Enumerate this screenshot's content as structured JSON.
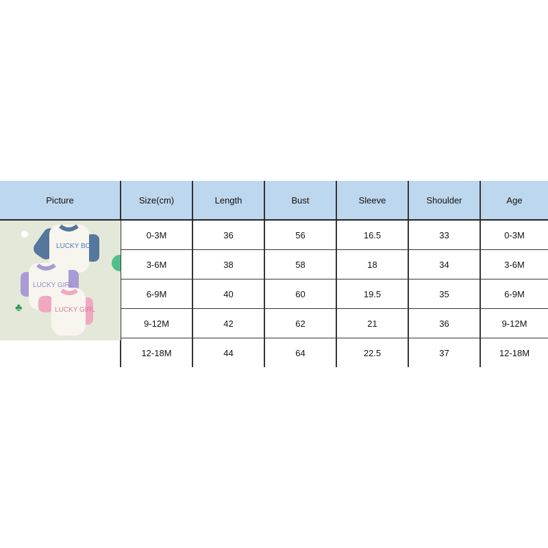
{
  "table": {
    "headers": [
      "Picture",
      "Size(cm)",
      "Length",
      "Bust",
      "Sleeve",
      "Shoulder",
      "Age"
    ],
    "rows": [
      [
        "0-3M",
        "36",
        "56",
        "16.5",
        "33",
        "0-3M"
      ],
      [
        "3-6M",
        "38",
        "58",
        "18",
        "34",
        "3-6M"
      ],
      [
        "6-9M",
        "40",
        "60",
        "19.5",
        "35",
        "6-9M"
      ],
      [
        "9-12M",
        "42",
        "62",
        "21",
        "36",
        "9-12M"
      ],
      [
        "12-18M",
        "44",
        "64",
        "22.5",
        "37",
        "12-18M"
      ]
    ]
  },
  "picture": {
    "lettering": [
      "LUCKY BOY",
      "LUCKY GIRL",
      "LUCKY GIRL"
    ],
    "colors": {
      "background": "#e4e8d8",
      "blue": "#56779c",
      "purple": "#a99bd6",
      "pink": "#f0a8c0",
      "clover": "#2e9a5a"
    }
  },
  "colors": {
    "header_bg": "#bdd7ee"
  }
}
